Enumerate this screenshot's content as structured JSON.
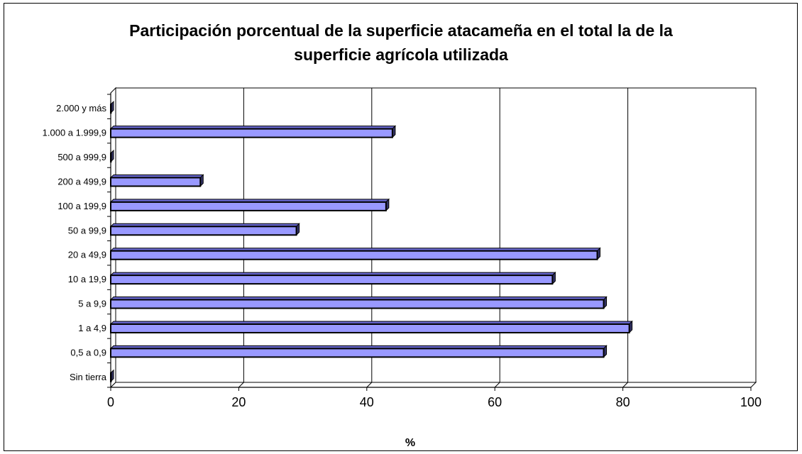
{
  "chart_data": {
    "type": "bar",
    "orientation": "horizontal",
    "title": "Participación porcentual de la superficie atacameña en el total la de la superficie agrícola utilizada",
    "title_lines": [
      "Participación porcentual de la superficie atacameña en el total la de la",
      "superficie agrícola utilizada"
    ],
    "xlabel": "%",
    "ylabel": "",
    "xlim": [
      0,
      100
    ],
    "xticks": [
      "0",
      "20",
      "40",
      "60",
      "80",
      "100"
    ],
    "grid": true,
    "categories": [
      "Sin tierra",
      "0,5 a 0,9",
      "1 a 4,9",
      "5 a 9,9",
      "10 a 19,9",
      "20 a 49,9",
      "50 a 99,9",
      "100 a 199,9",
      "200 a 499,9",
      "500 a 999,9",
      "1.000 a 1.999,9",
      "2.000 y más"
    ],
    "values": [
      0,
      77,
      81,
      77,
      69,
      76,
      29,
      43,
      14,
      0,
      44,
      0
    ],
    "colors": {
      "bar": "#9999ff",
      "bar_edge": "#000000",
      "plot_bg": "#ffffff",
      "grid": "#000000"
    }
  }
}
